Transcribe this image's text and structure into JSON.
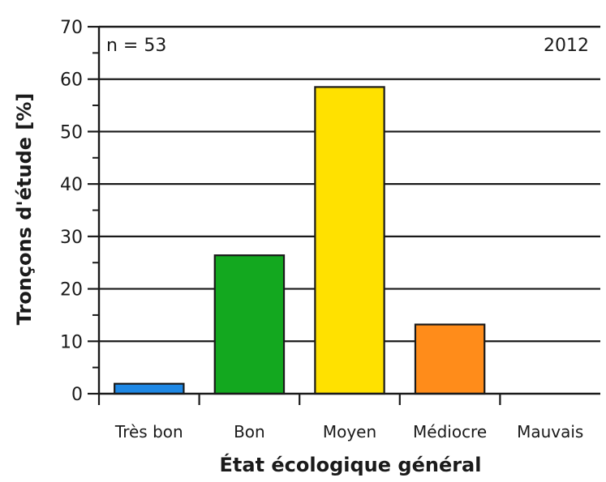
{
  "chart_data": {
    "type": "bar",
    "categories": [
      "Très bon",
      "Bon",
      "Moyen",
      "Médiocre",
      "Mauvais"
    ],
    "values": [
      1.9,
      26.4,
      58.5,
      13.2,
      0
    ],
    "colors": [
      "#1e88e5",
      "#13a81f",
      "#ffe100",
      "#ff8c1a",
      "#e53935"
    ],
    "xlabel": "État écologique général",
    "ylabel": "Tronçons d'étude [%]",
    "ylim": [
      0,
      70
    ],
    "yticks": [
      0,
      10,
      20,
      30,
      40,
      50,
      60,
      70
    ],
    "grid": true,
    "annotations": {
      "sample": "n = 53",
      "year": "2012"
    }
  }
}
